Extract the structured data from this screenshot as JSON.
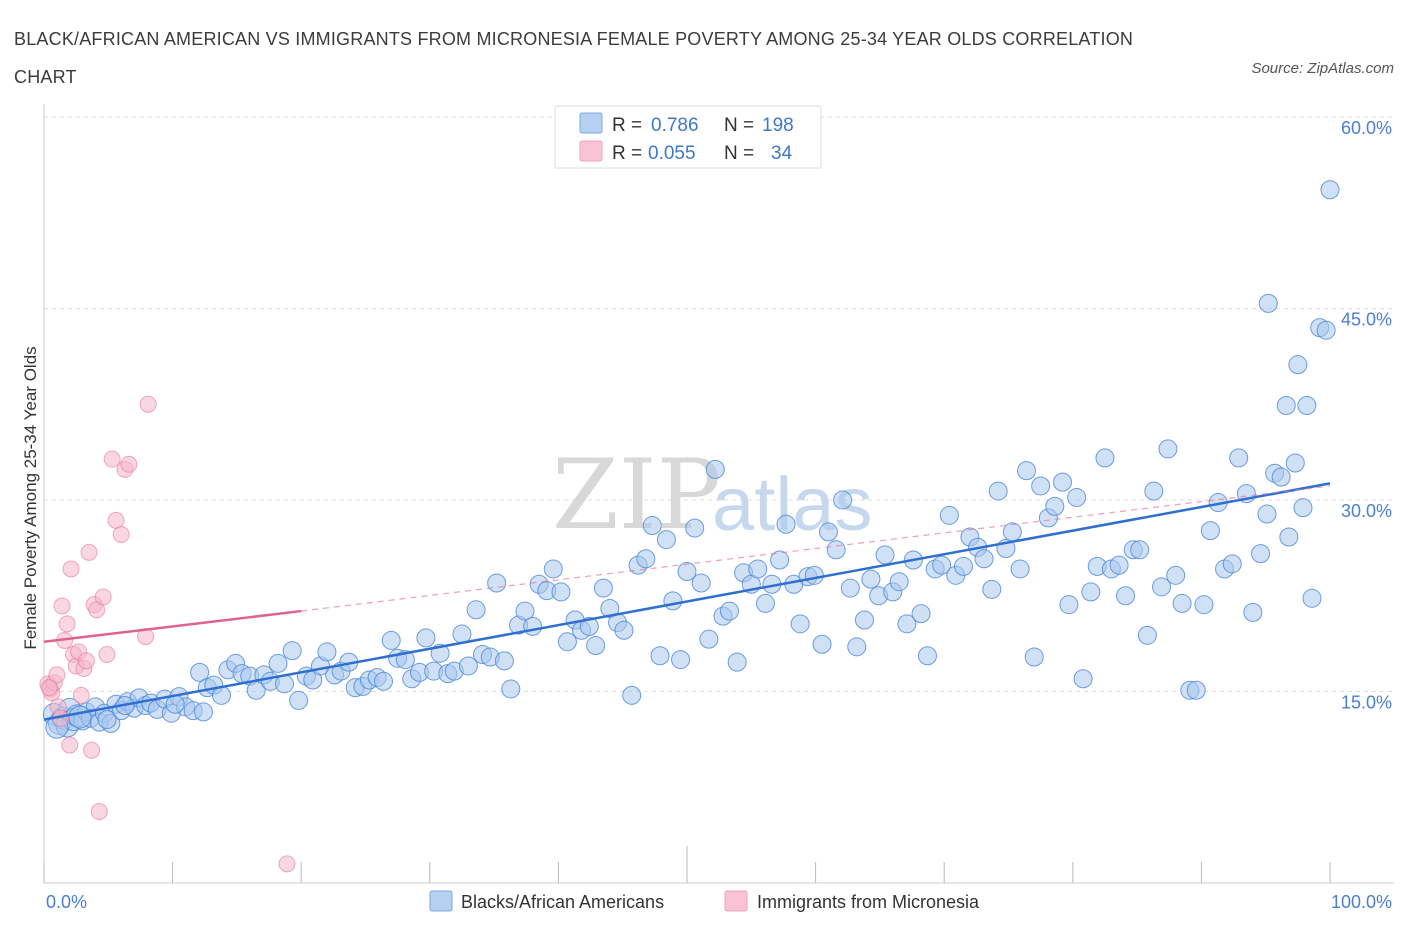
{
  "title": "BLACK/AFRICAN AMERICAN VS IMMIGRANTS FROM MICRONESIA FEMALE POVERTY AMONG 25-34 YEAR OLDS CORRELATION CHART",
  "source": "Source: ZipAtlas.com",
  "watermark": {
    "zip": "ZIP",
    "atlas": "atlas"
  },
  "colors": {
    "blue": "#4a86d8",
    "blue_fill": "#aac8ee",
    "pink": "#e8739c",
    "pink_fill": "#f4b7cb",
    "axis_label": "#4a7fd4",
    "grid": "#dddddd"
  },
  "legend": {
    "rows": [
      {
        "r_label": "R =",
        "r_value": "0.786",
        "n_label": "N =",
        "n_value": "198"
      },
      {
        "r_label": "R =",
        "r_value": "0.055",
        "n_label": "N =",
        "n_value": "34"
      }
    ]
  },
  "bottom_legend": [
    "Blacks/African Americans",
    "Immigrants from Micronesia"
  ],
  "chart_data": {
    "type": "scatter",
    "xlabel": "",
    "ylabel": "Female Poverty Among 25-34 Year Olds",
    "xlim": [
      0,
      100
    ],
    "ylim": [
      0,
      60
    ],
    "x_tick_labels": [
      "0.0%",
      "100.0%"
    ],
    "y_tick_labels": [
      "15.0%",
      "30.0%",
      "45.0%",
      "60.0%"
    ],
    "y_ticks": [
      15,
      30,
      45,
      60
    ],
    "grid": true,
    "series": [
      {
        "name": "Blacks/African Americans",
        "trend": {
          "x0": 0,
          "y0": 12.8,
          "x1": 100,
          "y1": 31.3
        },
        "points": [
          [
            0.8,
            13.2
          ],
          [
            1.2,
            12.5
          ],
          [
            1.5,
            12.9
          ],
          [
            1.8,
            12.3
          ],
          [
            2.0,
            13.6
          ],
          [
            2.3,
            12.8
          ],
          [
            2.6,
            13.1
          ],
          [
            3.0,
            12.7
          ],
          [
            3.3,
            13.4
          ],
          [
            3.6,
            12.9
          ],
          [
            4.0,
            13.8
          ],
          [
            4.3,
            12.6
          ],
          [
            4.7,
            13.3
          ],
          [
            5.2,
            12.5
          ],
          [
            5.6,
            14.0
          ],
          [
            6.0,
            13.5
          ],
          [
            6.5,
            14.2
          ],
          [
            7.0,
            13.7
          ],
          [
            7.4,
            14.5
          ],
          [
            7.9,
            13.9
          ],
          [
            8.3,
            14.1
          ],
          [
            8.8,
            13.6
          ],
          [
            9.4,
            14.4
          ],
          [
            9.9,
            13.3
          ],
          [
            10.5,
            14.6
          ],
          [
            11.0,
            13.8
          ],
          [
            11.6,
            13.5
          ],
          [
            12.1,
            16.5
          ],
          [
            12.7,
            15.3
          ],
          [
            13.2,
            15.5
          ],
          [
            13.8,
            14.7
          ],
          [
            14.3,
            16.7
          ],
          [
            14.9,
            17.2
          ],
          [
            15.4,
            16.4
          ],
          [
            16.0,
            16.2
          ],
          [
            16.5,
            15.1
          ],
          [
            17.1,
            16.3
          ],
          [
            17.6,
            15.8
          ],
          [
            18.2,
            17.2
          ],
          [
            18.7,
            15.6
          ],
          [
            19.3,
            18.2
          ],
          [
            19.8,
            14.3
          ],
          [
            20.4,
            16.2
          ],
          [
            20.9,
            15.9
          ],
          [
            21.5,
            17.0
          ],
          [
            22.0,
            18.1
          ],
          [
            22.6,
            16.3
          ],
          [
            23.1,
            16.6
          ],
          [
            23.7,
            17.3
          ],
          [
            24.2,
            15.3
          ],
          [
            24.8,
            15.4
          ],
          [
            25.3,
            15.9
          ],
          [
            25.9,
            16.1
          ],
          [
            26.4,
            15.8
          ],
          [
            27.0,
            19.0
          ],
          [
            27.5,
            17.6
          ],
          [
            28.1,
            17.5
          ],
          [
            28.6,
            16.0
          ],
          [
            29.2,
            16.5
          ],
          [
            29.7,
            19.2
          ],
          [
            30.3,
            16.6
          ],
          [
            30.8,
            18.0
          ],
          [
            31.4,
            16.4
          ],
          [
            31.9,
            16.6
          ],
          [
            32.5,
            19.5
          ],
          [
            33.0,
            17.0
          ],
          [
            33.6,
            21.4
          ],
          [
            34.1,
            17.9
          ],
          [
            34.7,
            17.7
          ],
          [
            35.2,
            23.5
          ],
          [
            35.8,
            17.4
          ],
          [
            36.3,
            15.2
          ],
          [
            36.9,
            20.2
          ],
          [
            37.4,
            21.3
          ],
          [
            38.0,
            20.1
          ],
          [
            38.5,
            23.4
          ],
          [
            39.1,
            22.9
          ],
          [
            39.6,
            24.6
          ],
          [
            40.2,
            22.8
          ],
          [
            40.7,
            18.9
          ],
          [
            41.3,
            20.6
          ],
          [
            41.8,
            19.8
          ],
          [
            42.4,
            20.1
          ],
          [
            42.9,
            18.6
          ],
          [
            43.5,
            23.1
          ],
          [
            44.0,
            21.5
          ],
          [
            44.6,
            20.4
          ],
          [
            45.1,
            19.8
          ],
          [
            45.7,
            14.7
          ],
          [
            46.2,
            24.9
          ],
          [
            46.8,
            25.4
          ],
          [
            47.3,
            28.0
          ],
          [
            47.9,
            17.8
          ],
          [
            48.4,
            26.9
          ],
          [
            48.9,
            22.1
          ],
          [
            49.5,
            17.5
          ],
          [
            50.0,
            24.4
          ],
          [
            50.6,
            27.8
          ],
          [
            51.1,
            23.5
          ],
          [
            51.7,
            19.1
          ],
          [
            52.2,
            32.4
          ],
          [
            52.8,
            20.9
          ],
          [
            53.3,
            21.3
          ],
          [
            53.9,
            17.3
          ],
          [
            54.4,
            24.3
          ],
          [
            55.0,
            23.4
          ],
          [
            55.5,
            24.6
          ],
          [
            56.1,
            21.9
          ],
          [
            56.6,
            23.4
          ],
          [
            57.2,
            25.3
          ],
          [
            57.7,
            28.1
          ],
          [
            58.3,
            23.4
          ],
          [
            58.8,
            20.3
          ],
          [
            59.4,
            24.0
          ],
          [
            59.9,
            24.1
          ],
          [
            60.5,
            18.7
          ],
          [
            61.0,
            27.5
          ],
          [
            61.6,
            26.1
          ],
          [
            62.1,
            30.0
          ],
          [
            62.7,
            23.1
          ],
          [
            63.2,
            18.5
          ],
          [
            63.8,
            20.6
          ],
          [
            64.3,
            23.8
          ],
          [
            64.9,
            22.5
          ],
          [
            65.4,
            25.7
          ],
          [
            66.0,
            22.8
          ],
          [
            66.5,
            23.6
          ],
          [
            67.1,
            20.3
          ],
          [
            67.6,
            25.3
          ],
          [
            68.2,
            21.1
          ],
          [
            68.7,
            17.8
          ],
          [
            69.3,
            24.6
          ],
          [
            69.8,
            24.9
          ],
          [
            70.4,
            28.8
          ],
          [
            70.9,
            24.1
          ],
          [
            71.5,
            24.8
          ],
          [
            72.0,
            27.1
          ],
          [
            72.6,
            26.3
          ],
          [
            73.1,
            25.4
          ],
          [
            73.7,
            23.0
          ],
          [
            74.2,
            30.7
          ],
          [
            74.8,
            26.2
          ],
          [
            75.3,
            27.5
          ],
          [
            75.9,
            24.6
          ],
          [
            76.4,
            32.3
          ],
          [
            77.0,
            17.7
          ],
          [
            77.5,
            31.1
          ],
          [
            78.1,
            28.6
          ],
          [
            78.6,
            29.5
          ],
          [
            79.2,
            31.4
          ],
          [
            79.7,
            21.8
          ],
          [
            80.3,
            30.2
          ],
          [
            80.8,
            16.0
          ],
          [
            81.4,
            22.8
          ],
          [
            81.9,
            24.8
          ],
          [
            82.5,
            33.3
          ],
          [
            83.0,
            24.6
          ],
          [
            83.6,
            24.9
          ],
          [
            84.1,
            22.5
          ],
          [
            84.7,
            26.1
          ],
          [
            85.2,
            26.1
          ],
          [
            85.8,
            19.4
          ],
          [
            86.3,
            30.7
          ],
          [
            86.9,
            23.2
          ],
          [
            87.4,
            34.0
          ],
          [
            88.0,
            24.1
          ],
          [
            88.5,
            21.9
          ],
          [
            89.1,
            15.1
          ],
          [
            89.6,
            15.1
          ],
          [
            90.2,
            21.8
          ],
          [
            90.7,
            27.6
          ],
          [
            91.3,
            29.8
          ],
          [
            91.8,
            24.6
          ],
          [
            92.4,
            25.0
          ],
          [
            92.9,
            33.3
          ],
          [
            93.5,
            30.5
          ],
          [
            94.0,
            21.2
          ],
          [
            94.6,
            25.8
          ],
          [
            95.1,
            28.9
          ],
          [
            95.7,
            32.1
          ],
          [
            96.2,
            31.8
          ],
          [
            96.8,
            27.1
          ],
          [
            97.3,
            32.9
          ],
          [
            97.9,
            29.4
          ],
          [
            95.2,
            45.4
          ],
          [
            96.6,
            37.4
          ],
          [
            97.5,
            40.6
          ],
          [
            98.2,
            37.4
          ],
          [
            98.6,
            22.3
          ],
          [
            99.2,
            43.5
          ],
          [
            99.7,
            43.3
          ],
          [
            100.0,
            54.3
          ],
          [
            2.8,
            13.0
          ],
          [
            4.9,
            12.8
          ],
          [
            6.3,
            13.9
          ],
          [
            10.2,
            14.0
          ],
          [
            12.4,
            13.4
          ],
          [
            1.0,
            12.2
          ]
        ]
      },
      {
        "name": "Immigrants from Micronesia",
        "trend": {
          "x0": 0,
          "y0": 18.9,
          "x1": 20,
          "y1": 21.3
        },
        "trend_ext": {
          "x0": 20,
          "y0": 21.3,
          "x1": 100,
          "y1": 31.1
        },
        "points": [
          [
            0.3,
            15.6
          ],
          [
            0.5,
            15.2
          ],
          [
            0.6,
            14.9
          ],
          [
            0.8,
            15.7
          ],
          [
            1.0,
            16.3
          ],
          [
            1.1,
            13.8
          ],
          [
            1.3,
            12.9
          ],
          [
            1.4,
            21.7
          ],
          [
            1.6,
            19.0
          ],
          [
            1.8,
            20.3
          ],
          [
            2.0,
            10.8
          ],
          [
            2.1,
            24.6
          ],
          [
            2.3,
            17.9
          ],
          [
            2.5,
            17.0
          ],
          [
            2.7,
            18.1
          ],
          [
            2.9,
            14.7
          ],
          [
            3.1,
            16.8
          ],
          [
            3.3,
            17.4
          ],
          [
            3.5,
            25.9
          ],
          [
            3.7,
            10.4
          ],
          [
            3.9,
            21.8
          ],
          [
            4.1,
            21.4
          ],
          [
            4.3,
            5.6
          ],
          [
            4.6,
            22.4
          ],
          [
            4.9,
            17.9
          ],
          [
            5.3,
            33.2
          ],
          [
            5.6,
            28.4
          ],
          [
            6.0,
            27.3
          ],
          [
            6.3,
            32.4
          ],
          [
            6.6,
            32.8
          ],
          [
            7.9,
            19.3
          ],
          [
            8.1,
            37.5
          ],
          [
            18.9,
            1.5
          ],
          [
            0.4,
            15.3
          ]
        ]
      }
    ]
  }
}
